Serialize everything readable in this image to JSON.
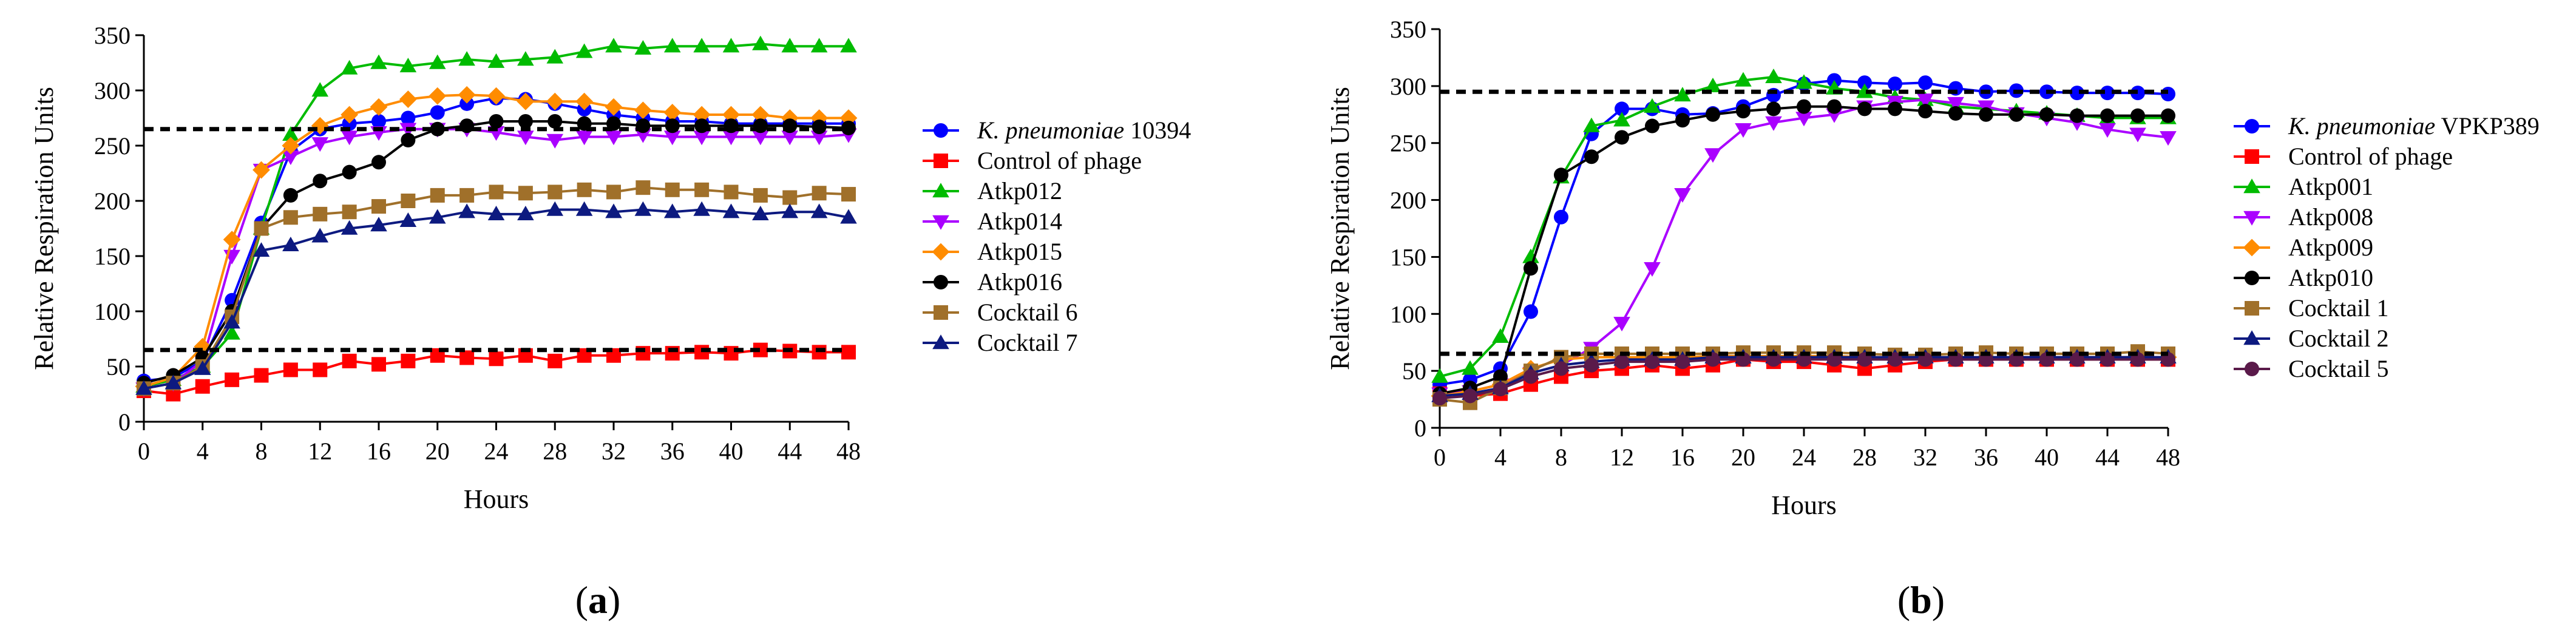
{
  "chart_data": [
    {
      "type": "line",
      "panel_label": "(a)",
      "panel_letter": "a",
      "xlabel": "Hours",
      "ylabel": "Relative Respiration Units",
      "xlim": [
        0,
        48
      ],
      "ylim": [
        0,
        350
      ],
      "xticks": [
        0,
        4,
        8,
        12,
        16,
        20,
        24,
        28,
        32,
        36,
        40,
        44,
        48
      ],
      "yticks": [
        0,
        50,
        100,
        150,
        200,
        250,
        300,
        350
      ],
      "reference_lines": [
        265,
        65
      ],
      "legend_position": "right",
      "x": [
        0,
        2,
        4,
        6,
        8,
        10,
        12,
        14,
        16,
        18,
        20,
        22,
        24,
        26,
        28,
        30,
        32,
        34,
        36,
        38,
        40,
        42,
        44,
        46,
        48
      ],
      "series": [
        {
          "name": "K. pneumoniae",
          "name_suffix": " 10394",
          "italic": true,
          "color": "#0000ff",
          "marker": "circle",
          "values": [
            37,
            40,
            55,
            110,
            180,
            245,
            265,
            270,
            272,
            275,
            280,
            288,
            293,
            292,
            288,
            283,
            278,
            275,
            272,
            272,
            270,
            270,
            270,
            270,
            270
          ]
        },
        {
          "name": "Control of phage",
          "name_suffix": "",
          "italic": false,
          "color": "#ff0000",
          "marker": "square",
          "values": [
            28,
            25,
            32,
            38,
            42,
            47,
            47,
            55,
            52,
            55,
            60,
            58,
            57,
            60,
            55,
            60,
            60,
            62,
            62,
            63,
            62,
            65,
            64,
            63,
            63
          ]
        },
        {
          "name": "Atkp012",
          "name_suffix": "",
          "italic": false,
          "color": "#00bb00",
          "marker": "triangle-up",
          "values": [
            32,
            38,
            50,
            80,
            175,
            260,
            300,
            320,
            325,
            322,
            325,
            328,
            326,
            328,
            330,
            335,
            340,
            338,
            340,
            340,
            340,
            342,
            340,
            340,
            340
          ]
        },
        {
          "name": "Atkp014",
          "name_suffix": "",
          "italic": false,
          "color": "#aa00ff",
          "marker": "triangle-down",
          "values": [
            30,
            35,
            55,
            150,
            228,
            240,
            252,
            258,
            262,
            265,
            265,
            265,
            262,
            258,
            255,
            258,
            258,
            260,
            258,
            258,
            258,
            258,
            258,
            258,
            260
          ]
        },
        {
          "name": "Atkp015",
          "name_suffix": "",
          "italic": false,
          "color": "#ff8c00",
          "marker": "diamond",
          "values": [
            32,
            40,
            68,
            165,
            228,
            250,
            268,
            278,
            285,
            292,
            295,
            296,
            295,
            290,
            290,
            290,
            285,
            282,
            280,
            278,
            278,
            278,
            275,
            275,
            275
          ]
        },
        {
          "name": "Atkp016",
          "name_suffix": "",
          "italic": false,
          "color": "#000000",
          "marker": "circle",
          "values": [
            35,
            42,
            58,
            100,
            175,
            205,
            218,
            226,
            235,
            255,
            265,
            268,
            272,
            272,
            272,
            270,
            270,
            268,
            268,
            268,
            268,
            268,
            268,
            267,
            266
          ]
        },
        {
          "name": "Cocktail 6",
          "name_suffix": "",
          "italic": false,
          "color": "#a0702a",
          "marker": "square",
          "values": [
            30,
            35,
            50,
            95,
            175,
            185,
            188,
            190,
            195,
            200,
            205,
            205,
            208,
            207,
            208,
            210,
            208,
            212,
            210,
            210,
            208,
            205,
            203,
            207,
            206
          ]
        },
        {
          "name": "Cocktail 7",
          "name_suffix": "",
          "italic": false,
          "color": "#0d1a80",
          "marker": "triangle-up",
          "values": [
            30,
            35,
            48,
            90,
            155,
            160,
            168,
            175,
            178,
            182,
            185,
            190,
            188,
            188,
            192,
            192,
            190,
            192,
            190,
            192,
            190,
            188,
            190,
            190,
            185
          ]
        }
      ]
    },
    {
      "type": "line",
      "panel_label": "(b)",
      "panel_letter": "b",
      "xlabel": "Hours",
      "ylabel": "Relative Respiration Units",
      "xlim": [
        0,
        48
      ],
      "ylim": [
        0,
        350
      ],
      "xticks": [
        0,
        4,
        8,
        12,
        16,
        20,
        24,
        28,
        32,
        36,
        40,
        44,
        48
      ],
      "yticks": [
        0,
        50,
        100,
        150,
        200,
        250,
        300,
        350
      ],
      "reference_lines": [
        295,
        65
      ],
      "legend_position": "right",
      "x": [
        0,
        2,
        4,
        6,
        8,
        10,
        12,
        14,
        16,
        18,
        20,
        22,
        24,
        26,
        28,
        30,
        32,
        34,
        36,
        38,
        40,
        42,
        44,
        46,
        48
      ],
      "series": [
        {
          "name": "K. pneumoniae",
          "name_suffix": " VPKP389",
          "italic": true,
          "color": "#0000ff",
          "marker": "circle",
          "values": [
            38,
            42,
            52,
            102,
            185,
            258,
            280,
            280,
            275,
            276,
            282,
            292,
            302,
            305,
            303,
            302,
            303,
            298,
            295,
            296,
            295,
            294,
            294,
            294,
            293
          ]
        },
        {
          "name": "Control of phage",
          "name_suffix": "",
          "italic": false,
          "color": "#ff0000",
          "marker": "square",
          "values": [
            30,
            28,
            30,
            38,
            45,
            50,
            52,
            55,
            52,
            55,
            60,
            58,
            58,
            55,
            52,
            55,
            58,
            60,
            60,
            60,
            60,
            60,
            60,
            60,
            60
          ]
        },
        {
          "name": "Atkp001",
          "name_suffix": "",
          "italic": false,
          "color": "#00bb00",
          "marker": "triangle-up",
          "values": [
            45,
            52,
            80,
            150,
            220,
            265,
            270,
            282,
            292,
            300,
            305,
            308,
            303,
            298,
            295,
            290,
            288,
            282,
            280,
            278,
            276,
            274,
            272,
            272,
            272
          ]
        },
        {
          "name": "Atkp008",
          "name_suffix": "",
          "italic": false,
          "color": "#aa00ff",
          "marker": "triangle-down",
          "values": [
            30,
            32,
            38,
            48,
            55,
            70,
            92,
            140,
            205,
            240,
            262,
            268,
            272,
            275,
            282,
            286,
            288,
            285,
            282,
            276,
            272,
            268,
            262,
            258,
            255
          ]
        },
        {
          "name": "Atkp009",
          "name_suffix": "",
          "italic": false,
          "color": "#ff8c00",
          "marker": "diamond",
          "values": [
            28,
            32,
            38,
            52,
            60,
            62,
            62,
            62,
            62,
            63,
            63,
            63,
            63,
            63,
            62,
            62,
            62,
            62,
            62,
            62,
            62,
            62,
            62,
            62,
            62
          ]
        },
        {
          "name": "Atkp010",
          "name_suffix": "",
          "italic": false,
          "color": "#000000",
          "marker": "circle",
          "values": [
            30,
            35,
            45,
            140,
            222,
            238,
            255,
            265,
            270,
            275,
            278,
            280,
            282,
            282,
            280,
            280,
            278,
            276,
            275,
            275,
            275,
            274,
            274,
            274,
            274
          ]
        },
        {
          "name": "Cocktail 1",
          "name_suffix": "",
          "italic": false,
          "color": "#a0702a",
          "marker": "square",
          "values": [
            25,
            22,
            35,
            50,
            62,
            65,
            65,
            65,
            65,
            65,
            66,
            66,
            66,
            66,
            65,
            64,
            64,
            65,
            66,
            65,
            65,
            65,
            65,
            67,
            65
          ]
        },
        {
          "name": "Cocktail 2",
          "name_suffix": "",
          "italic": false,
          "color": "#0d1a80",
          "marker": "triangle-up",
          "values": [
            28,
            30,
            35,
            48,
            55,
            58,
            60,
            60,
            60,
            62,
            62,
            62,
            62,
            62,
            62,
            62,
            62,
            62,
            62,
            62,
            62,
            62,
            62,
            62,
            62
          ]
        },
        {
          "name": "Cocktail 5",
          "name_suffix": "",
          "italic": false,
          "color": "#5a1a4a",
          "marker": "circle",
          "values": [
            26,
            28,
            34,
            45,
            52,
            55,
            58,
            58,
            58,
            60,
            60,
            60,
            60,
            60,
            60,
            60,
            60,
            60,
            60,
            60,
            60,
            60,
            60,
            60,
            60
          ]
        }
      ]
    }
  ]
}
